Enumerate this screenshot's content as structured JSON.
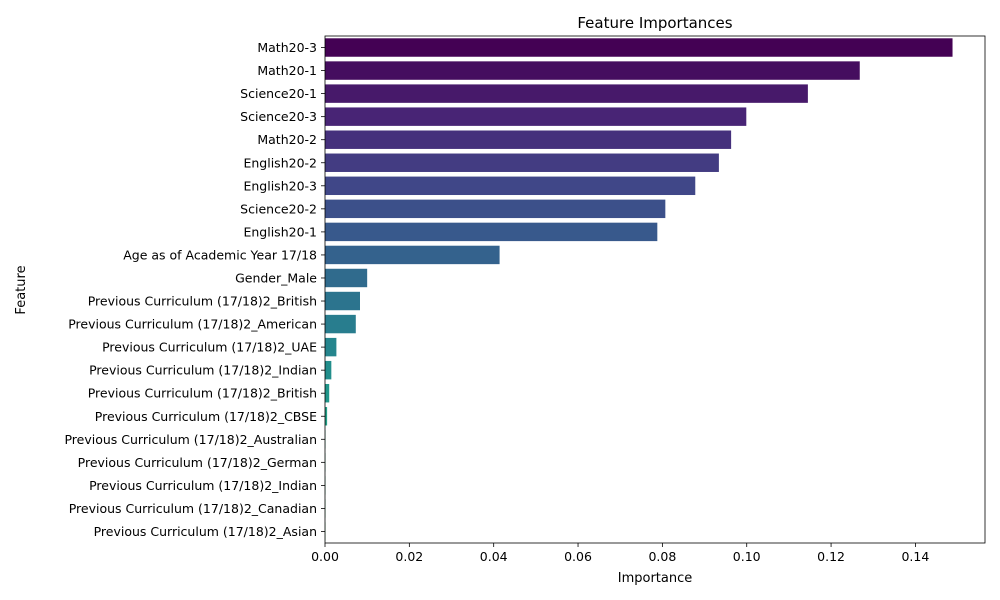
{
  "chart_data": {
    "type": "bar",
    "orientation": "horizontal",
    "title": "Feature Importances",
    "xlabel": "Importance",
    "ylabel": "Feature",
    "xlim": [
      0,
      0.1565
    ],
    "xticks": [
      "0.00",
      "0.02",
      "0.04",
      "0.06",
      "0.08",
      "0.10",
      "0.12",
      "0.14"
    ],
    "xtick_values": [
      0,
      0.02,
      0.04,
      0.06,
      0.08,
      0.1,
      0.12,
      0.14
    ],
    "grid": false,
    "categories": [
      "Math20-3",
      "Math20-1",
      "Science20-1",
      "Science20-3",
      "Math20-2",
      "English20-2",
      "English20-3",
      "Science20-2",
      "English20-1",
      "Age as of Academic Year 17/18",
      "Gender_Male",
      "Previous Curriculum (17/18)2_British",
      "Previous Curriculum (17/18)2_American",
      "Previous Curriculum (17/18)2_UAE",
      "Previous Curriculum (17/18)2_Indian",
      "Previous Curriculum (17/18)2_British",
      "Previous Curriculum (17/18)2_CBSE",
      "Previous Curriculum (17/18)2_Australian",
      "Previous Curriculum (17/18)2_German",
      "Previous Curriculum (17/18)2_Indian",
      "Previous Curriculum (17/18)2_Canadian",
      "Previous Curriculum (17/18)2_Asian"
    ],
    "values": [
      0.1488,
      0.1268,
      0.1145,
      0.0999,
      0.0963,
      0.0934,
      0.0878,
      0.0807,
      0.0788,
      0.0414,
      0.01,
      0.0083,
      0.0073,
      0.0027,
      0.0015,
      0.001,
      0.0005,
      0.0001,
      0.0001,
      0.0001,
      0.0001,
      0.0001
    ],
    "palette": "viridis"
  }
}
